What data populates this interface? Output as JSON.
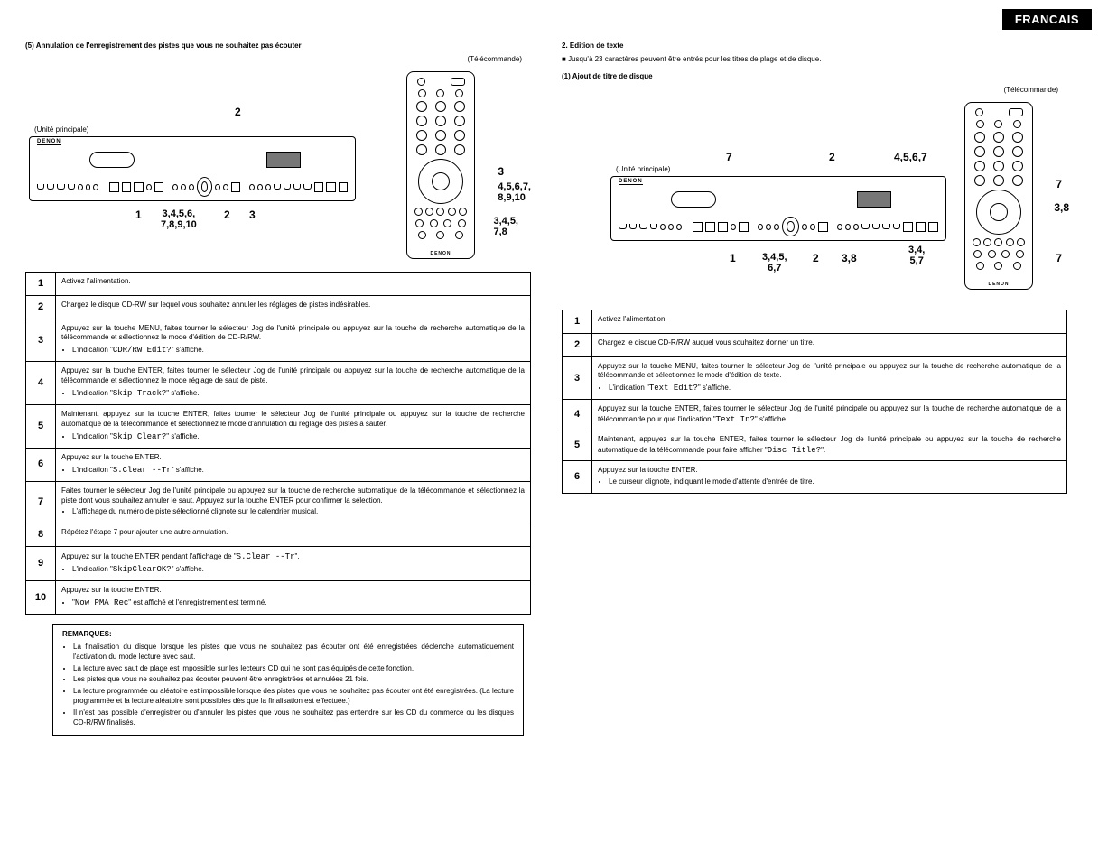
{
  "lang_tag": "FRANCAIS",
  "left": {
    "heading": "(5) Annulation de l'enregistrement des pistes que vous ne souhaitez pas écouter",
    "remote_label": "(Télécommande)",
    "unit_label": "(Unité principale)",
    "brand": "DENON",
    "callouts": {
      "top2": "2",
      "right3": "3",
      "right45678910": "4,5,6,7,\n8,9,10",
      "right3478": "3,4,5,\n7,8",
      "bottom1": "1",
      "bottom34567810": "3,4,5,6,\n7,8,9,10",
      "bottom2": "2",
      "bottom3": "3"
    },
    "steps": [
      {
        "n": "1",
        "t": "Activez l'alimentation."
      },
      {
        "n": "2",
        "t": "Chargez le disque CD-RW sur lequel vous souhaitez annuler les réglages de pistes indésirables."
      },
      {
        "n": "3",
        "t": "Appuyez sur la touche MENU, faites tourner le sélecteur Jog de l'unité principale ou appuyez sur la touche de recherche automatique de la télécommande et sélectionnez le mode d'édition de CD-R/RW.",
        "b": [
          "L'indication \"CDR/RW Edit?\" s'affiche."
        ]
      },
      {
        "n": "4",
        "t": "Appuyez sur la touche ENTER, faites tourner le sélecteur Jog de l'unité principale ou appuyez sur la touche de recherche automatique de la télécommande et sélectionnez le mode réglage de saut de piste.",
        "b": [
          "L'indication \"Skip Track?\" s'affiche."
        ]
      },
      {
        "n": "5",
        "t": "Maintenant, appuyez sur la touche ENTER, faites tourner le sélecteur Jog de l'unité principale ou appuyez sur la touche de recherche automatique de la télécommande et sélectionnez le mode d'annulation du réglage des pistes à sauter.",
        "b": [
          "L'indication \"Skip Clear?\" s'affiche."
        ]
      },
      {
        "n": "6",
        "t": "Appuyez sur la touche ENTER.",
        "b": [
          "L'indication \"S.Clear --Tr\" s'affiche."
        ]
      },
      {
        "n": "7",
        "t": "Faites tourner le sélecteur Jog de l'unité principale ou appuyez sur la touche de recherche automatique de la télécommande et sélectionnez la piste dont vous souhaitez annuler le saut. Appuyez sur la touche ENTER pour confirmer la sélection.",
        "b": [
          "L'affichage du numéro de piste sélectionné clignote sur le calendrier musical."
        ]
      },
      {
        "n": "8",
        "t": "Répétez l'étape 7 pour ajouter une autre annulation."
      },
      {
        "n": "9",
        "t": "Appuyez sur la touche ENTER pendant l'affichage de \"S.Clear --Tr\".",
        "b": [
          "L'indication \"SkipClearOK?\" s'affiche."
        ]
      },
      {
        "n": "10",
        "t": "Appuyez sur la touche ENTER.",
        "b": [
          "\"Now PMA Rec\" est affiché et l'enregistrement est terminé."
        ]
      }
    ],
    "remarks_title": "REMARQUES:",
    "remarks": [
      "La finalisation du disque lorsque les pistes que vous ne souhaitez pas écouter ont été enregistrées déclenche automatiquement l'activation du  mode lecture avec saut.",
      "La lecture avec saut de plage est impossible sur les lecteurs CD qui ne sont pas équipés de cette fonction.",
      "Les pistes que vous ne souhaitez pas écouter peuvent être enregistrées et annulées 21 fois.",
      "La lecture programmée ou aléatoire est impossible lorsque des pistes que vous ne souhaitez pas écouter ont été enregistrées. (La lecture programmée et la lecture aléatoire sont possibles dès que la finalisation est effectuée.)",
      "Il n'est pas possible d'enregistrer ou d'annuler les pistes que vous ne souhaitez pas entendre sur les CD du commerce ou les disques CD-R/RW finalisés."
    ]
  },
  "right": {
    "heading": "2.  Edition de texte",
    "bullet": "Jusqu'à 23 caractères peuvent être entrés pour les titres de plage et de disque.",
    "subheading": "(1) Ajout de titre de disque",
    "remote_label": "(Télécommande)",
    "unit_label": "(Unité principale)",
    "brand": "DENON",
    "callouts": {
      "top7": "7",
      "top2": "2",
      "top4567": "4,5,6,7",
      "far7": "7",
      "far38": "3,8",
      "far7b": "7",
      "bottom1": "1",
      "bottom34567": "3,4,5,\n6,7",
      "bottom2": "2",
      "bottom38": "3,8",
      "bottom3457": "3,4,\n5,7"
    },
    "steps": [
      {
        "n": "1",
        "t": "Activez l'alimentation."
      },
      {
        "n": "2",
        "t": "Chargez le disque CD-R/RW auquel vous souhaitez donner un titre."
      },
      {
        "n": "3",
        "t": "Appuyez sur la touche MENU, faites tourner le sélecteur Jog de l'unité principale ou appuyez sur la touche de recherche automatique de la télécommande et sélectionnez le mode d'édition de texte.",
        "b": [
          "L'indication \"Text Edit?\" s'affiche."
        ]
      },
      {
        "n": "4",
        "t": "Appuyez sur la touche ENTER, faites tourner le sélecteur Jog de l'unité principale ou appuyez sur la touche de recherche automatique de la télécommande pour que l'indication \"Text In?\" s'affiche."
      },
      {
        "n": "5",
        "t": "Maintenant, appuyez sur la touche ENTER, faites tourner le sélecteur Jog de l'unité principale ou appuyez sur la touche de recherche automatique de la télécommande pour faire afficher \"Disc Title?\"."
      },
      {
        "n": "6",
        "t": "Appuyez sur la touche ENTER.",
        "b": [
          "Le curseur clignote, indiquant le mode d'attente d'entrée de titre."
        ]
      }
    ]
  }
}
